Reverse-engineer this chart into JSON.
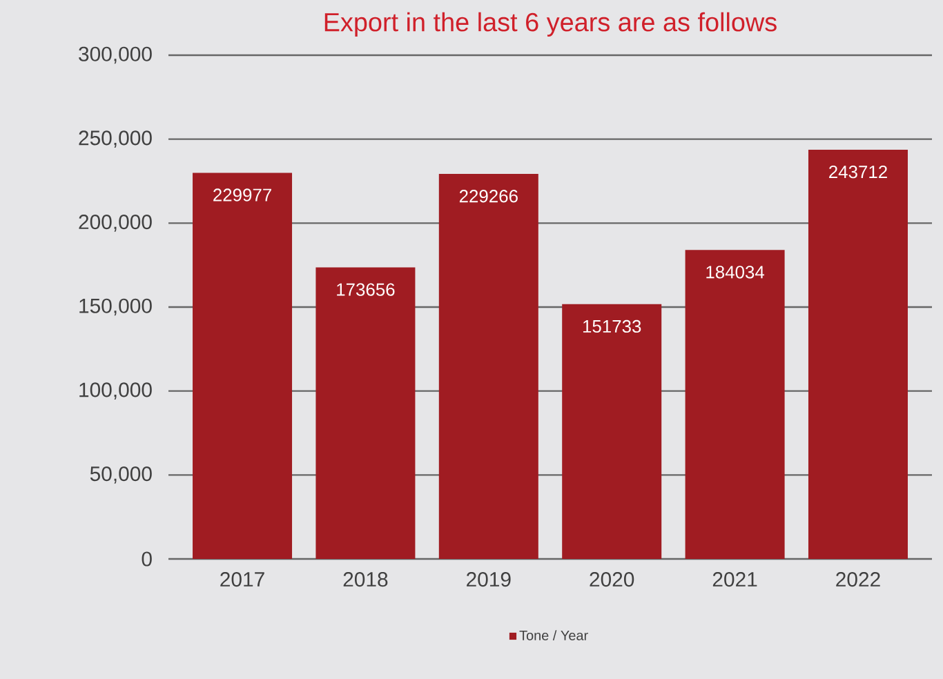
{
  "chart_data": {
    "type": "bar",
    "title": "Export in the last 6 years are as follows",
    "categories": [
      "2017",
      "2018",
      "2019",
      "2020",
      "2021",
      "2022"
    ],
    "series": [
      {
        "name": "Tone / Year",
        "color": "#a01c22",
        "values": [
          229977,
          173656,
          229266,
          151733,
          184034,
          243712
        ]
      }
    ],
    "ylim": [
      0,
      300000
    ],
    "yticks": [
      {
        "value": 0,
        "label": "0"
      },
      {
        "value": 50000,
        "label": "50,000"
      },
      {
        "value": 100000,
        "label": "100,000"
      },
      {
        "value": 150000,
        "label": "150,000"
      },
      {
        "value": 200000,
        "label": "200,000"
      },
      {
        "value": 250000,
        "label": "250,000"
      },
      {
        "value": 300000,
        "label": "300,000"
      }
    ],
    "grid": "y",
    "legend": "bottom",
    "data_labels": true
  }
}
